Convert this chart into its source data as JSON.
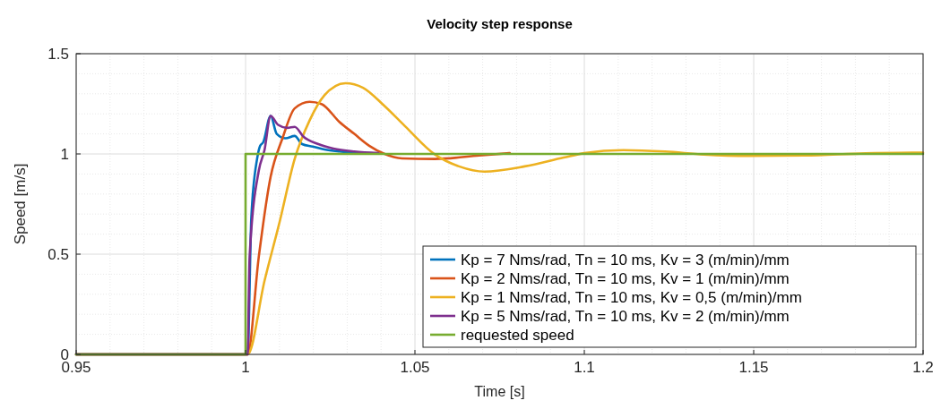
{
  "chart_data": {
    "type": "line",
    "title": "Velocity step response",
    "xlabel": "Time [s]",
    "ylabel": "Speed [m/s]",
    "xlim": [
      0.95,
      1.2
    ],
    "xticks": [
      0.95,
      1,
      1.05,
      1.1,
      1.15,
      1.2
    ],
    "ylim": [
      0,
      1.5
    ],
    "yticks": [
      0,
      0.5,
      1,
      1.5
    ],
    "grid": true,
    "legend": "bottom right",
    "line_style": "solid",
    "series": [
      {
        "name": "Kp = 7 Nms/rad, Tn = 10 ms, Kv = 3 (m/min)/mm",
        "color": "#0072bd",
        "x": [
          0.95,
          1.0,
          1.0006,
          1.0017,
          1.0034,
          1.0043,
          1.0052,
          1.0074,
          1.0092,
          1.0118,
          1.0145,
          1.0167,
          1.0198,
          1.0233,
          1.0277,
          1.0339
        ],
        "values": [
          0,
          0,
          0,
          0.68,
          0.975,
          1.04,
          1.058,
          1.19,
          1.1,
          1.078,
          1.09,
          1.049,
          1.037,
          1.022,
          1.012,
          1.004
        ]
      },
      {
        "name": "Kp = 2 Nms/rad, Tn = 10 ms, Kv = 1 (m/min)/mm",
        "color": "#d95319",
        "x": [
          0.95,
          1.0,
          1.0006,
          1.0039,
          1.0074,
          1.0109,
          1.0145,
          1.0189,
          1.0224,
          1.0277,
          1.0321,
          1.0365,
          1.0409,
          1.0462,
          1.0559,
          1.069,
          1.078
        ],
        "values": [
          0,
          0,
          0,
          0.486,
          0.886,
          1.078,
          1.227,
          1.26,
          1.249,
          1.16,
          1.1,
          1.041,
          1.001,
          0.978,
          0.975,
          0.992,
          1.004
        ]
      },
      {
        "name": "Kp = 1 Nms/rad, Tn = 10 ms, Kv = 0,5 (m/min)/mm",
        "color": "#edb120",
        "x": [
          0.95,
          1.0,
          1.0006,
          1.0056,
          1.0101,
          1.0145,
          1.0189,
          1.0233,
          1.0295,
          1.0347,
          1.0409,
          1.0471,
          1.0559,
          1.063,
          1.0705,
          1.0824,
          1.0939,
          1.1,
          1.1115,
          1.1238,
          1.1353,
          1.1485,
          1.165,
          1.183,
          1.2
        ],
        "values": [
          0,
          0,
          0,
          0.367,
          0.664,
          0.975,
          1.167,
          1.293,
          1.353,
          1.33,
          1.241,
          1.138,
          0.997,
          0.938,
          0.912,
          0.938,
          0.982,
          1.004,
          1.019,
          1.012,
          0.997,
          0.99,
          0.992,
          1.003,
          1.007
        ]
      },
      {
        "name": "Kp = 5 Nms/rad, Tn = 10 ms, Kv = 2 (m/min)/mm",
        "color": "#7e2f8e",
        "x": [
          0.95,
          1.0,
          1.0006,
          1.0012,
          1.0039,
          1.0056,
          1.0074,
          1.0096,
          1.0123,
          1.0145,
          1.0171,
          1.0215,
          1.0259,
          1.0321,
          1.0392
        ],
        "values": [
          0,
          0,
          0,
          0.486,
          0.916,
          1.02,
          1.19,
          1.145,
          1.13,
          1.135,
          1.086,
          1.049,
          1.027,
          1.012,
          1.004
        ]
      },
      {
        "name": "requested speed",
        "color": "#77ac30",
        "x": [
          0.95,
          1.0,
          1.0,
          1.2
        ],
        "values": [
          0,
          0,
          1,
          1
        ]
      }
    ]
  }
}
